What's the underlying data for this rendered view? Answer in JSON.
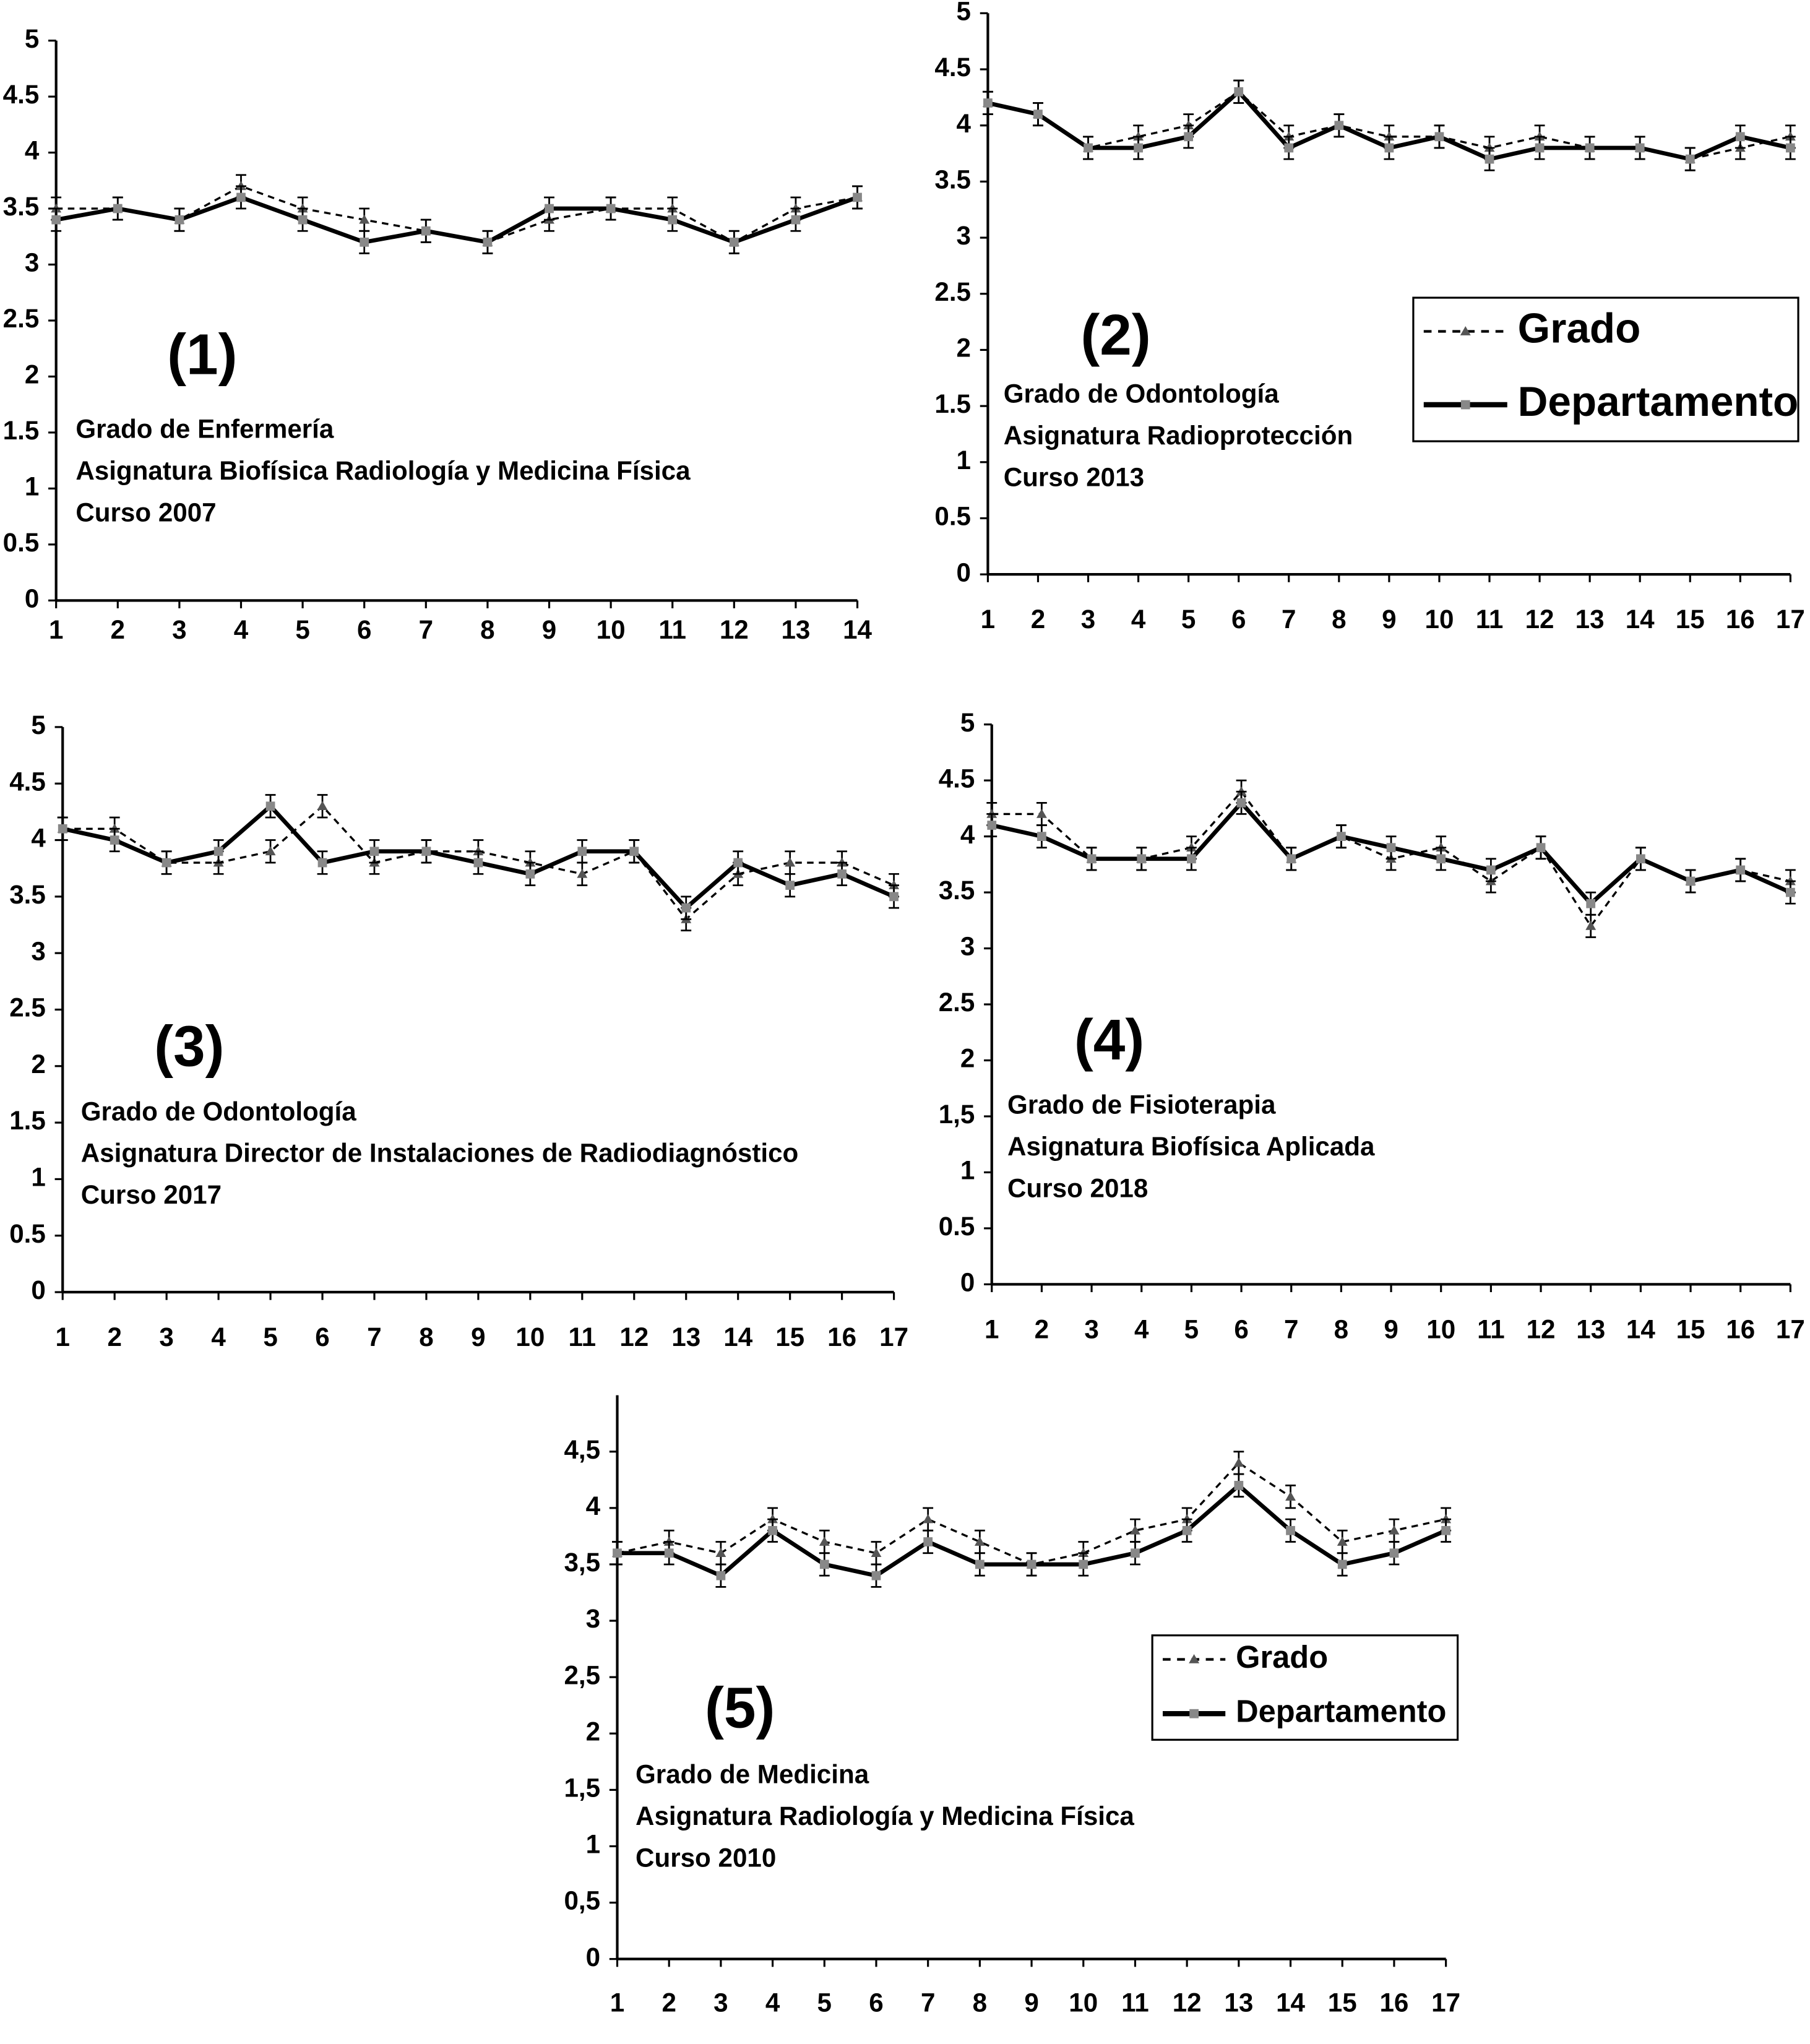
{
  "chart_data": [
    {
      "type": "line",
      "categories": [
        "1",
        "2",
        "3",
        "4",
        "5",
        "6",
        "7",
        "8",
        "9",
        "10",
        "11",
        "12",
        "13",
        "14"
      ],
      "ylim": [
        0,
        5
      ],
      "yticks": [
        0,
        0.5,
        1,
        1.5,
        2,
        2.5,
        3,
        3.5,
        4,
        4.5,
        5
      ],
      "legend": false,
      "annotation": {
        "label": "(1)",
        "lines": [
          "Grado de Enfermería",
          "Asignatura Biofísica Radiología y Medicina Física",
          "Curso 2007"
        ]
      },
      "series": [
        {
          "color": "#000000",
          "marker_color": "#555555",
          "line_style": "dashed",
          "marker": "triangle",
          "values": [
            3.5,
            3.5,
            3.4,
            3.7,
            3.5,
            3.4,
            3.3,
            3.2,
            3.4,
            3.5,
            3.5,
            3.2,
            3.5,
            3.6
          ],
          "errors": [
            0.1,
            0.1,
            0.1,
            0.1,
            0.1,
            0.1,
            0.1,
            0.1,
            0.1,
            0.1,
            0.1,
            0.1,
            0.1,
            0.1
          ]
        },
        {
          "color": "#000000",
          "marker_color": "#888888",
          "line_style": "solid",
          "marker": "square",
          "values": [
            3.4,
            3.5,
            3.4,
            3.6,
            3.4,
            3.2,
            3.3,
            3.2,
            3.5,
            3.5,
            3.4,
            3.2,
            3.4,
            3.6
          ],
          "errors": [
            0.1,
            0.1,
            0.1,
            0.1,
            0.1,
            0.1,
            0.1,
            0.1,
            0.1,
            0.1,
            0.1,
            0.1,
            0.1,
            0.1
          ]
        }
      ]
    },
    {
      "type": "line",
      "categories": [
        "1",
        "2",
        "3",
        "4",
        "5",
        "6",
        "7",
        "8",
        "9",
        "10",
        "11",
        "12",
        "13",
        "14",
        "15",
        "16",
        "17"
      ],
      "ylim": [
        0,
        5
      ],
      "yticks": [
        0,
        0.5,
        1,
        1.5,
        2,
        2.5,
        3,
        3.5,
        4,
        4.5,
        5
      ],
      "legend": true,
      "annotation": {
        "label": "(2)",
        "lines": [
          "Grado de Odontología",
          "Asignatura Radioprotección",
          "Curso 2013"
        ]
      },
      "series": [
        {
          "name": "Grado",
          "color": "#000000",
          "marker_color": "#555555",
          "line_style": "dashed",
          "marker": "triangle",
          "values": [
            4.2,
            4.1,
            3.8,
            3.9,
            4.0,
            4.3,
            3.9,
            4.0,
            3.9,
            3.9,
            3.8,
            3.9,
            3.8,
            3.8,
            3.7,
            3.8,
            3.9
          ],
          "errors": [
            0.1,
            0.1,
            0.1,
            0.1,
            0.1,
            0.1,
            0.1,
            0.1,
            0.1,
            0.1,
            0.1,
            0.1,
            0.1,
            0.1,
            0.1,
            0.1,
            0.1
          ]
        },
        {
          "name": "Departamento",
          "color": "#000000",
          "marker_color": "#888888",
          "line_style": "solid",
          "marker": "square",
          "values": [
            4.2,
            4.1,
            3.8,
            3.8,
            3.9,
            4.3,
            3.8,
            4.0,
            3.8,
            3.9,
            3.7,
            3.8,
            3.8,
            3.8,
            3.7,
            3.9,
            3.8
          ],
          "errors": [
            0.1,
            0.1,
            0.1,
            0.1,
            0.1,
            0.1,
            0.1,
            0.1,
            0.1,
            0.1,
            0.1,
            0.1,
            0.1,
            0.1,
            0.1,
            0.1,
            0.1
          ]
        }
      ]
    },
    {
      "type": "line",
      "categories": [
        "1",
        "2",
        "3",
        "4",
        "5",
        "6",
        "7",
        "8",
        "9",
        "10",
        "11",
        "12",
        "13",
        "14",
        "15",
        "16",
        "17"
      ],
      "ylim": [
        0,
        5
      ],
      "yticks": [
        0,
        0.5,
        1,
        1.5,
        2,
        2.5,
        3,
        3.5,
        4,
        4.5,
        5
      ],
      "legend": false,
      "annotation": {
        "label": "(3)",
        "lines": [
          "Grado de Odontología",
          "Asignatura Director de Instalaciones de Radiodiagnóstico",
          "Curso 2017"
        ]
      },
      "series": [
        {
          "color": "#000000",
          "marker_color": "#555555",
          "line_style": "dashed",
          "marker": "triangle",
          "values": [
            4.1,
            4.1,
            3.8,
            3.8,
            3.9,
            4.3,
            3.8,
            3.9,
            3.9,
            3.8,
            3.7,
            3.9,
            3.3,
            3.7,
            3.8,
            3.8,
            3.6
          ],
          "errors": [
            0.1,
            0.1,
            0.1,
            0.1,
            0.1,
            0.1,
            0.1,
            0.1,
            0.1,
            0.1,
            0.1,
            0.1,
            0.1,
            0.1,
            0.1,
            0.1,
            0.1
          ]
        },
        {
          "color": "#000000",
          "marker_color": "#888888",
          "line_style": "solid",
          "marker": "square",
          "values": [
            4.1,
            4.0,
            3.8,
            3.9,
            4.3,
            3.8,
            3.9,
            3.9,
            3.8,
            3.7,
            3.9,
            3.9,
            3.4,
            3.8,
            3.6,
            3.7,
            3.5
          ],
          "errors": [
            0.1,
            0.1,
            0.1,
            0.1,
            0.1,
            0.1,
            0.1,
            0.1,
            0.1,
            0.1,
            0.1,
            0.1,
            0.1,
            0.1,
            0.1,
            0.1,
            0.1
          ]
        }
      ]
    },
    {
      "type": "line",
      "categories": [
        "1",
        "2",
        "3",
        "4",
        "5",
        "6",
        "7",
        "8",
        "9",
        "10",
        "11",
        "12",
        "13",
        "14",
        "15",
        "16",
        "17"
      ],
      "ylim": [
        0,
        5
      ],
      "yticks": [
        0,
        0.5,
        1,
        {
          "value": 1.5,
          "label": "1,5"
        },
        2,
        2.5,
        3,
        3.5,
        4,
        4.5,
        5
      ],
      "legend": false,
      "annotation": {
        "label": "(4)",
        "lines": [
          "Grado de Fisioterapia",
          "Asignatura Biofísica Aplicada",
          "Curso 2018"
        ]
      },
      "series": [
        {
          "color": "#000000",
          "marker_color": "#555555",
          "line_style": "dashed",
          "marker": "triangle",
          "values": [
            4.2,
            4.2,
            3.8,
            3.8,
            3.9,
            4.4,
            3.8,
            4.0,
            3.8,
            3.9,
            3.6,
            3.9,
            3.2,
            3.8,
            3.6,
            3.7,
            3.6
          ],
          "errors": [
            0.1,
            0.1,
            0.1,
            0.1,
            0.1,
            0.1,
            0.1,
            0.1,
            0.1,
            0.1,
            0.1,
            0.1,
            0.1,
            0.1,
            0.1,
            0.1,
            0.1
          ]
        },
        {
          "color": "#000000",
          "marker_color": "#888888",
          "line_style": "solid",
          "marker": "square",
          "values": [
            4.1,
            4.0,
            3.8,
            3.8,
            3.8,
            4.3,
            3.8,
            4.0,
            3.9,
            3.8,
            3.7,
            3.9,
            3.4,
            3.8,
            3.6,
            3.7,
            3.5
          ],
          "errors": [
            0.1,
            0.1,
            0.1,
            0.1,
            0.1,
            0.1,
            0.1,
            0.1,
            0.1,
            0.1,
            0.1,
            0.1,
            0.1,
            0.1,
            0.1,
            0.1,
            0.1
          ]
        }
      ]
    },
    {
      "type": "line",
      "categories": [
        "1",
        "2",
        "3",
        "4",
        "5",
        "6",
        "7",
        "8",
        "9",
        "10",
        "11",
        "12",
        "13",
        "14",
        "15",
        "16",
        "17"
      ],
      "ylim": [
        0,
        5
      ],
      "yticks": [
        0,
        {
          "value": 0.5,
          "label": "0,5"
        },
        1,
        {
          "value": 1.5,
          "label": "1,5"
        },
        2,
        {
          "value": 2.5,
          "label": "2,5"
        },
        3,
        {
          "value": 3.5,
          "label": "3,5"
        },
        4,
        {
          "value": 4.5,
          "label": "4,5"
        }
      ],
      "legend": true,
      "annotation": {
        "label": "(5)",
        "lines": [
          "Grado de Medicina",
          "Asignatura Radiología y Medicina Física",
          "Curso 2010"
        ]
      },
      "series": [
        {
          "name": "Grado",
          "color": "#000000",
          "marker_color": "#555555",
          "line_style": "dashed",
          "marker": "triangle",
          "values": [
            3.6,
            3.7,
            3.6,
            3.9,
            3.7,
            3.6,
            3.9,
            3.7,
            3.5,
            3.6,
            3.8,
            3.9,
            4.4,
            4.1,
            3.7,
            3.8,
            3.9
          ],
          "errors": [
            0.1,
            0.1,
            0.1,
            0.1,
            0.1,
            0.1,
            0.1,
            0.1,
            0.1,
            0.1,
            0.1,
            0.1,
            0.1,
            0.1,
            0.1,
            0.1,
            0.1
          ]
        },
        {
          "name": "Departamento",
          "color": "#000000",
          "marker_color": "#888888",
          "line_style": "solid",
          "marker": "square",
          "values": [
            3.6,
            3.6,
            3.4,
            3.8,
            3.5,
            3.4,
            3.7,
            3.5,
            3.5,
            3.5,
            3.6,
            3.8,
            4.2,
            3.8,
            3.5,
            3.6,
            3.8
          ],
          "errors": [
            0.1,
            0.1,
            0.1,
            0.1,
            0.1,
            0.1,
            0.1,
            0.1,
            0.1,
            0.1,
            0.1,
            0.1,
            0.1,
            0.1,
            0.1,
            0.1,
            0.1
          ]
        }
      ]
    }
  ]
}
